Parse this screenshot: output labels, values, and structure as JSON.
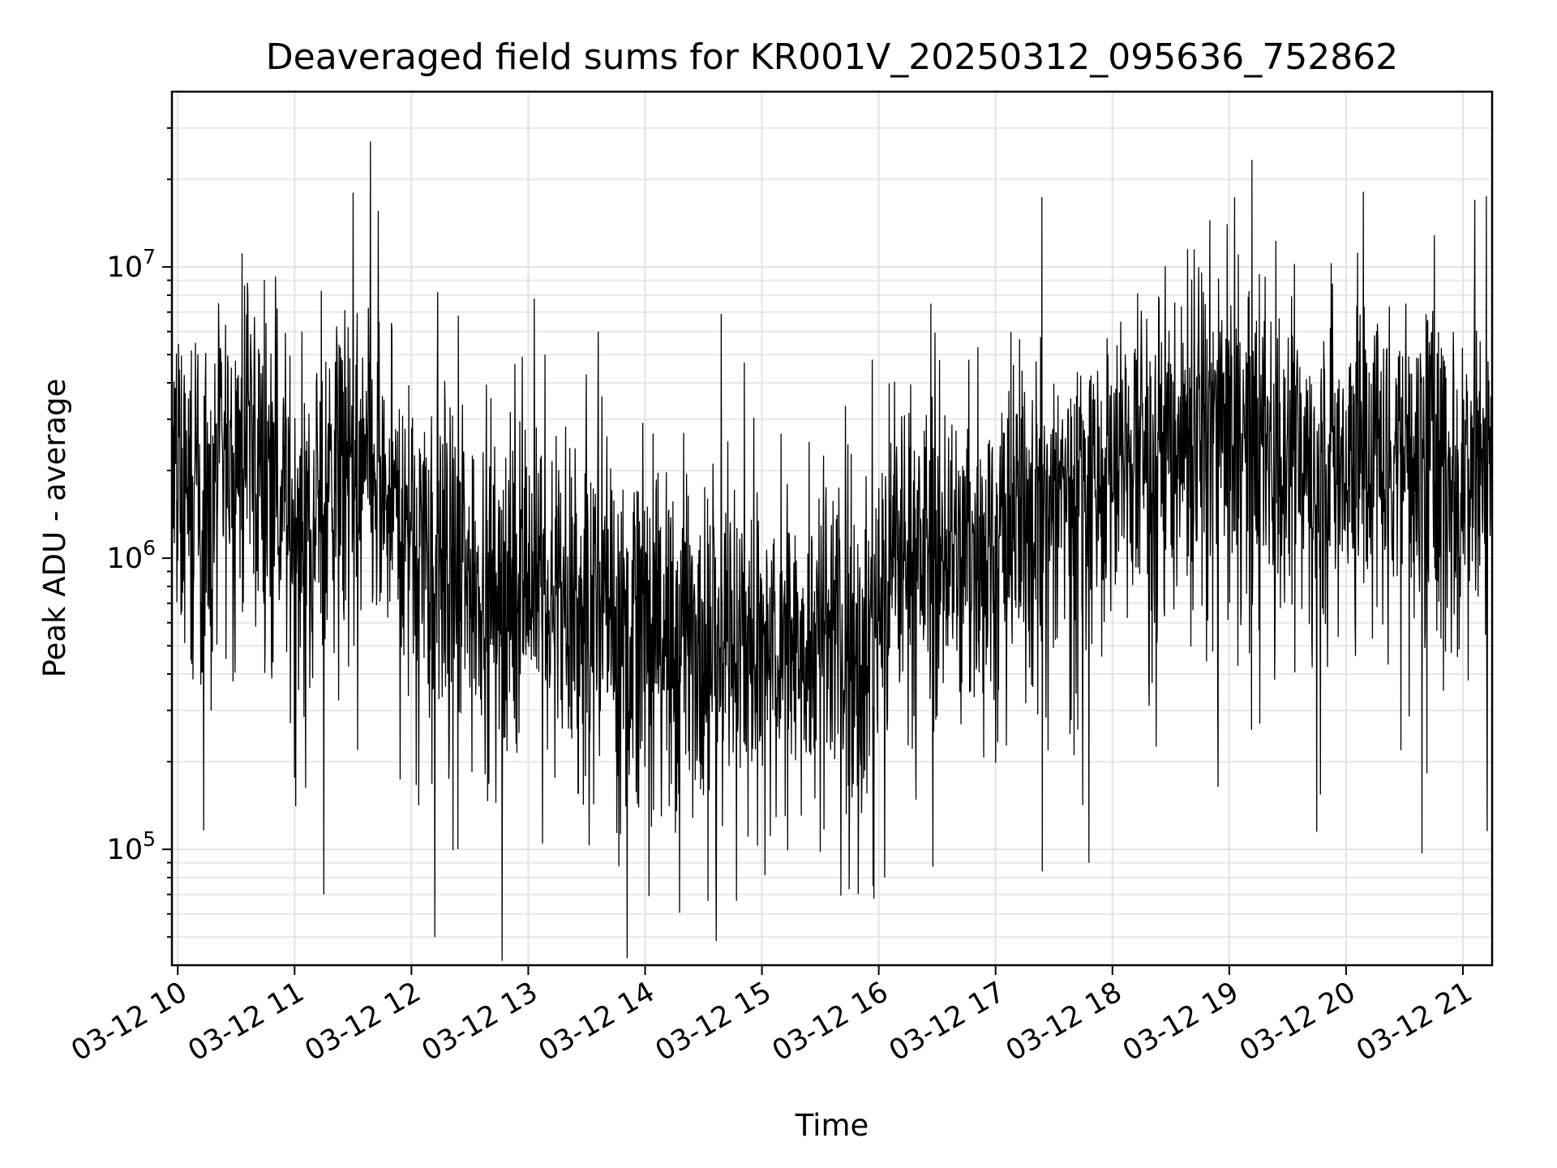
{
  "chart_data": {
    "type": "line",
    "title": "Deaveraged field sums for KR001V_20250312_095636_752862",
    "xlabel": "Time",
    "ylabel": "Peak ADU - average",
    "yscale": "log",
    "grid": true,
    "x_range_hours": [
      9.95,
      21.25
    ],
    "ylim": [
      40000,
      40000000
    ],
    "x_ticks": [
      {
        "hour": 10,
        "label": "03-12 10"
      },
      {
        "hour": 11,
        "label": "03-12 11"
      },
      {
        "hour": 12,
        "label": "03-12 12"
      },
      {
        "hour": 13,
        "label": "03-12 13"
      },
      {
        "hour": 14,
        "label": "03-12 14"
      },
      {
        "hour": 15,
        "label": "03-12 15"
      },
      {
        "hour": 16,
        "label": "03-12 16"
      },
      {
        "hour": 17,
        "label": "03-12 17"
      },
      {
        "hour": 18,
        "label": "03-12 18"
      },
      {
        "hour": 19,
        "label": "03-12 19"
      },
      {
        "hour": 20,
        "label": "03-12 20"
      },
      {
        "hour": 21,
        "label": "03-12 21"
      }
    ],
    "y_ticks": [
      {
        "value": 100000,
        "base": "10",
        "exp": "5"
      },
      {
        "value": 1000000,
        "base": "10",
        "exp": "6"
      },
      {
        "value": 10000000,
        "base": "10",
        "exp": "7"
      }
    ],
    "series": [
      {
        "color": "#000000",
        "baseline": [
          [
            9.95,
            1800000
          ],
          [
            10.2,
            1300000
          ],
          [
            10.5,
            2500000
          ],
          [
            10.8,
            2000000
          ],
          [
            11.0,
            1300000
          ],
          [
            11.3,
            1700000
          ],
          [
            11.6,
            1900000
          ],
          [
            11.9,
            1400000
          ],
          [
            12.2,
            1100000
          ],
          [
            12.5,
            900000
          ],
          [
            12.8,
            800000
          ],
          [
            13.0,
            900000
          ],
          [
            13.3,
            700000
          ],
          [
            13.6,
            650000
          ],
          [
            14.0,
            620000
          ],
          [
            14.3,
            520000
          ],
          [
            14.7,
            550000
          ],
          [
            15.0,
            480000
          ],
          [
            15.3,
            520000
          ],
          [
            15.7,
            520000
          ],
          [
            15.9,
            500000
          ],
          [
            16.2,
            1200000
          ],
          [
            16.5,
            1000000
          ],
          [
            16.9,
            1100000
          ],
          [
            17.2,
            1300000
          ],
          [
            17.6,
            1700000
          ],
          [
            18.0,
            2000000
          ],
          [
            18.3,
            2300000
          ],
          [
            18.8,
            3000000
          ],
          [
            19.0,
            2600000
          ],
          [
            19.3,
            2500000
          ],
          [
            19.7,
            2100000
          ],
          [
            20.0,
            2300000
          ],
          [
            20.4,
            2400000
          ],
          [
            20.8,
            2200000
          ],
          [
            21.0,
            2100000
          ],
          [
            21.25,
            2300000
          ]
        ],
        "spikes": [
          [
            10.6,
            8000000
          ],
          [
            10.85,
            7200000
          ],
          [
            11.25,
            70000
          ],
          [
            11.65,
            27000000
          ],
          [
            12.2,
            50000
          ],
          [
            12.4,
            6800000
          ],
          [
            13.05,
            7800000
          ],
          [
            13.6,
            6000000
          ],
          [
            14.65,
            6900000
          ],
          [
            14.85,
            4700000
          ],
          [
            15.2,
            130000
          ],
          [
            15.5,
            98000
          ],
          [
            15.95,
            75000
          ],
          [
            16.05,
            80000
          ],
          [
            16.85,
            5300000
          ],
          [
            17.4,
            84000
          ],
          [
            17.8,
            90000
          ],
          [
            18.7,
            11500000
          ],
          [
            19.4,
            12300000
          ],
          [
            19.75,
            115000
          ],
          [
            20.1,
            11200000
          ],
          [
            20.65,
            13000000
          ],
          [
            20.65,
            97000
          ],
          [
            21.1,
            17000000
          ],
          [
            21.2,
            17500000
          ]
        ]
      }
    ]
  }
}
